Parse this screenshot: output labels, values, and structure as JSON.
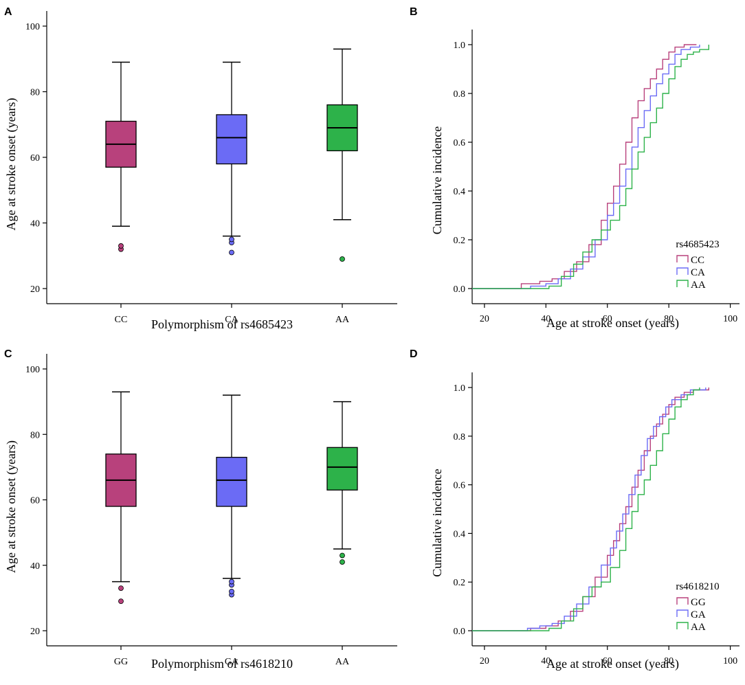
{
  "colors": {
    "magenta": "#B8417C",
    "blue": "#6B6BF5",
    "green": "#2DB24A"
  },
  "panels": [
    {
      "letter": "A"
    },
    {
      "letter": "B"
    },
    {
      "letter": "C"
    },
    {
      "letter": "D"
    }
  ],
  "chart_data": [
    {
      "type": "box",
      "panel": "A",
      "xlabel": "Polymorphism of rs4685423",
      "ylabel": "Age at stroke onset (years)",
      "ylim": [
        20,
        100
      ],
      "yticks": [
        20,
        40,
        60,
        80,
        100
      ],
      "categories": [
        "CC",
        "CA",
        "AA"
      ],
      "boxes": [
        {
          "label": "CC",
          "color": "magenta",
          "whisker_low": 39,
          "q1": 57,
          "median": 64,
          "q3": 71,
          "whisker_high": 89,
          "outliers": [
            32,
            33
          ]
        },
        {
          "label": "CA",
          "color": "blue",
          "whisker_low": 36,
          "q1": 58,
          "median": 66,
          "q3": 73,
          "whisker_high": 89,
          "outliers": [
            31,
            34,
            35
          ]
        },
        {
          "label": "AA",
          "color": "green",
          "whisker_low": 41,
          "q1": 62,
          "median": 69,
          "q3": 76,
          "whisker_high": 93,
          "outliers": [
            29
          ]
        }
      ]
    },
    {
      "type": "line",
      "panel": "B",
      "xlabel": "Age at stroke onset (years)",
      "ylabel": "Cumulative incidence",
      "xlim": [
        16,
        103
      ],
      "ylim": [
        0,
        1
      ],
      "xticks": [
        20,
        40,
        60,
        80,
        100
      ],
      "yticks": [
        "0.0",
        "0.2",
        "0.4",
        "0.6",
        "0.8",
        "1.0"
      ],
      "legend_title": "rs4685423",
      "legend_position": "bottom-right",
      "series": [
        {
          "name": "CC",
          "color": "magenta",
          "x": [
            16,
            29,
            32,
            38,
            42,
            46,
            50,
            54,
            58,
            60,
            62,
            64,
            66,
            68,
            70,
            72,
            74,
            76,
            78,
            80,
            82,
            85,
            89
          ],
          "y": [
            0,
            0,
            0.02,
            0.03,
            0.04,
            0.07,
            0.11,
            0.18,
            0.28,
            0.35,
            0.42,
            0.51,
            0.6,
            0.7,
            0.77,
            0.82,
            0.86,
            0.9,
            0.94,
            0.97,
            0.99,
            1.0,
            1.0
          ]
        },
        {
          "name": "CA",
          "color": "blue",
          "x": [
            16,
            30,
            35,
            40,
            44,
            48,
            52,
            56,
            60,
            62,
            64,
            66,
            68,
            70,
            72,
            74,
            76,
            78,
            80,
            82,
            84,
            87,
            90
          ],
          "y": [
            0,
            0,
            0.01,
            0.02,
            0.04,
            0.08,
            0.13,
            0.2,
            0.3,
            0.35,
            0.42,
            0.49,
            0.58,
            0.66,
            0.73,
            0.79,
            0.84,
            0.88,
            0.92,
            0.96,
            0.98,
            0.99,
            1.0
          ]
        },
        {
          "name": "AA",
          "color": "green",
          "x": [
            16,
            41,
            45,
            49,
            52,
            55,
            58,
            61,
            64,
            66,
            68,
            70,
            72,
            74,
            76,
            78,
            80,
            82,
            84,
            86,
            88,
            90,
            93
          ],
          "y": [
            0,
            0.01,
            0.05,
            0.1,
            0.15,
            0.2,
            0.24,
            0.28,
            0.34,
            0.41,
            0.49,
            0.56,
            0.62,
            0.68,
            0.74,
            0.8,
            0.86,
            0.91,
            0.94,
            0.96,
            0.97,
            0.98,
            1.0
          ]
        }
      ]
    },
    {
      "type": "box",
      "panel": "C",
      "xlabel": "Polymorphism of rs4618210",
      "ylabel": "Age at stroke onset (years)",
      "ylim": [
        20,
        100
      ],
      "yticks": [
        20,
        40,
        60,
        80,
        100
      ],
      "categories": [
        "GG",
        "GA",
        "AA"
      ],
      "boxes": [
        {
          "label": "GG",
          "color": "magenta",
          "whisker_low": 35,
          "q1": 58,
          "median": 66,
          "q3": 74,
          "whisker_high": 93,
          "outliers": [
            29,
            33
          ]
        },
        {
          "label": "GA",
          "color": "blue",
          "whisker_low": 36,
          "q1": 58,
          "median": 66,
          "q3": 73,
          "whisker_high": 92,
          "outliers": [
            31,
            32,
            34,
            35
          ]
        },
        {
          "label": "AA",
          "color": "green",
          "whisker_low": 45,
          "q1": 63,
          "median": 70,
          "q3": 76,
          "whisker_high": 90,
          "outliers": [
            41,
            43
          ]
        }
      ]
    },
    {
      "type": "line",
      "panel": "D",
      "xlabel": "Age at stroke onset (years)",
      "ylabel": "Cumulative incidence",
      "xlim": [
        16,
        103
      ],
      "ylim": [
        0,
        1
      ],
      "xticks": [
        20,
        40,
        60,
        80,
        100
      ],
      "yticks": [
        "0.0",
        "0.2",
        "0.4",
        "0.6",
        "0.8",
        "1.0"
      ],
      "legend_title": "rs4618210",
      "legend_position": "bottom-right",
      "series": [
        {
          "name": "GG",
          "color": "magenta",
          "x": [
            16,
            29,
            35,
            40,
            44,
            48,
            52,
            56,
            60,
            62,
            64,
            66,
            68,
            70,
            72,
            74,
            76,
            78,
            80,
            82,
            85,
            88,
            93
          ],
          "y": [
            0,
            0,
            0.01,
            0.02,
            0.04,
            0.08,
            0.14,
            0.22,
            0.31,
            0.37,
            0.44,
            0.51,
            0.59,
            0.66,
            0.74,
            0.8,
            0.85,
            0.89,
            0.93,
            0.96,
            0.98,
            0.99,
            1.0
          ]
        },
        {
          "name": "GA",
          "color": "blue",
          "x": [
            16,
            30,
            34,
            38,
            42,
            46,
            50,
            54,
            58,
            61,
            63,
            65,
            67,
            69,
            71,
            73,
            75,
            77,
            79,
            81,
            84,
            87,
            92
          ],
          "y": [
            0,
            0,
            0.01,
            0.02,
            0.03,
            0.06,
            0.11,
            0.18,
            0.27,
            0.34,
            0.41,
            0.48,
            0.56,
            0.64,
            0.72,
            0.79,
            0.84,
            0.88,
            0.92,
            0.95,
            0.97,
            0.99,
            1.0
          ]
        },
        {
          "name": "AA",
          "color": "green",
          "x": [
            16,
            41,
            45,
            49,
            52,
            55,
            58,
            61,
            64,
            66,
            68,
            70,
            72,
            74,
            76,
            78,
            80,
            82,
            84,
            86,
            88,
            90
          ],
          "y": [
            0,
            0.01,
            0.04,
            0.09,
            0.14,
            0.18,
            0.2,
            0.26,
            0.33,
            0.42,
            0.49,
            0.56,
            0.62,
            0.68,
            0.74,
            0.81,
            0.87,
            0.92,
            0.95,
            0.97,
            0.99,
            1.0
          ]
        }
      ]
    }
  ]
}
